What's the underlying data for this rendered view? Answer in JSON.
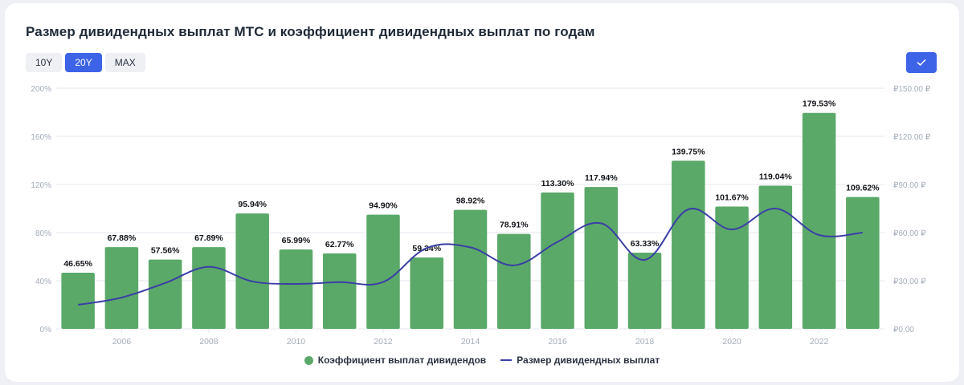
{
  "title": "Размер дивидендных выплат МТС и коэффициент дивидендных выплат по годам",
  "range_buttons": [
    {
      "label": "10Y",
      "active": false
    },
    {
      "label": "20Y",
      "active": true
    },
    {
      "label": "MAX",
      "active": false
    }
  ],
  "colors": {
    "bar": "#5aa969",
    "line": "#3b3fa6",
    "grid": "#e4e7ec",
    "axis_text": "#a4acb9",
    "accent": "#3d63e6"
  },
  "icons": {
    "confirm": "check-icon"
  },
  "chart_data": {
    "type": "bar+line",
    "title": "Размер дивидендных выплат МТС и коэффициент дивидендных выплат по годам",
    "x": [
      2005,
      2006,
      2007,
      2008,
      2009,
      2010,
      2011,
      2012,
      2013,
      2014,
      2015,
      2016,
      2017,
      2018,
      2019,
      2020,
      2021,
      2022,
      2023
    ],
    "x_ticks": [
      "2006",
      "2008",
      "2010",
      "2012",
      "2014",
      "2016",
      "2018",
      "2020",
      "2022"
    ],
    "y_left_ticks": [
      "0%",
      "40%",
      "80%",
      "120%",
      "160%",
      "200%"
    ],
    "y_left_lim": [
      0,
      200
    ],
    "y_right_ticks": [
      "₽0.00",
      "₽30.00 ₽",
      "₽60.00 ₽",
      "₽90.00 ₽",
      "₽120.00 ₽",
      "₽150.00 ₽"
    ],
    "y_right_lim": [
      0,
      150
    ],
    "grid": true,
    "legend_position": "bottom-center",
    "series": [
      {
        "name": "Коэффициент выплат дивидендов",
        "kind": "bar",
        "axis": "left",
        "values": [
          46.65,
          67.88,
          57.56,
          67.89,
          95.94,
          65.99,
          62.77,
          94.9,
          59.34,
          98.92,
          78.91,
          113.3,
          117.94,
          63.33,
          139.75,
          101.67,
          119.04,
          179.53,
          109.62
        ],
        "labels": [
          "46.65%",
          "67.88%",
          "57.56%",
          "67.89%",
          "95.94%",
          "65.99%",
          "62.77%",
          "94.90%",
          "59.34%",
          "98.92%",
          "78.91%",
          "113.30%",
          "117.94%",
          "63.33%",
          "139.75%",
          "101.67%",
          "119.04%",
          "179.53%",
          "109.62%"
        ]
      },
      {
        "name": "Размер дивидендных выплат",
        "kind": "line",
        "axis": "right",
        "values": [
          15.0,
          19.5,
          28.6,
          38.6,
          29.6,
          28.0,
          29.1,
          29.2,
          50.4,
          50.8,
          39.6,
          54.2,
          65.8,
          43.0,
          74.5,
          62.0,
          75.0,
          58.5,
          60.0
        ]
      }
    ]
  }
}
